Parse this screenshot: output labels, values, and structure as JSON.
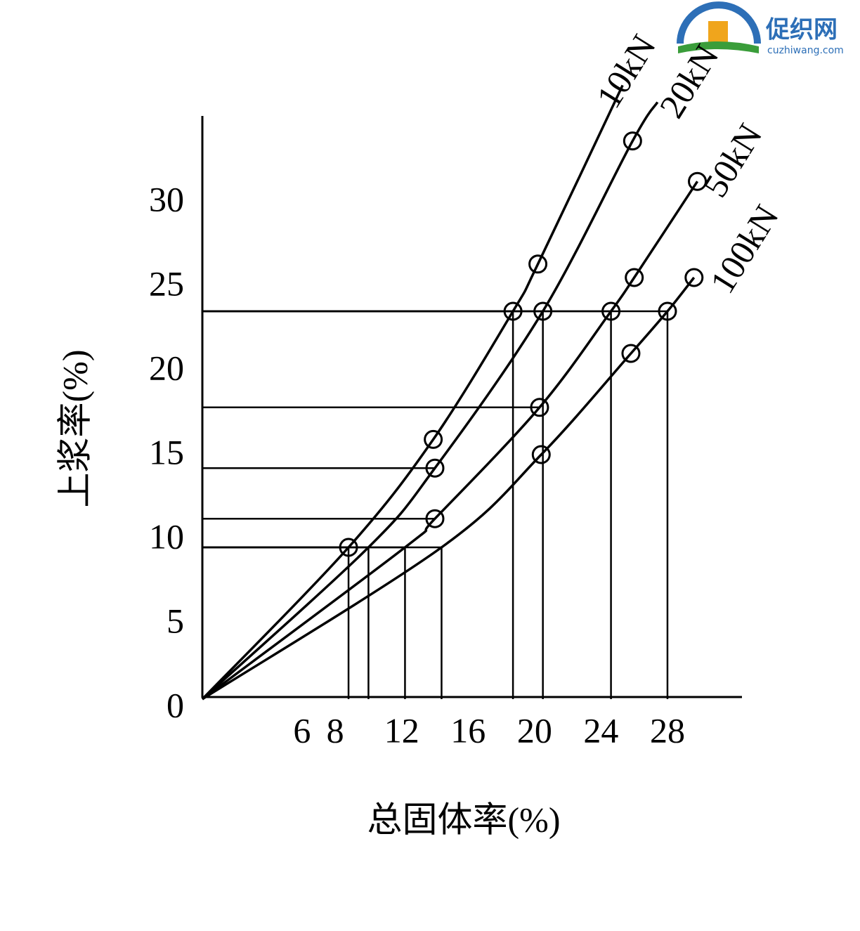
{
  "chart_data": {
    "type": "line",
    "x_label": "总固体率(%)",
    "y_label": "上浆率(%)",
    "xlim": [
      0,
      32.4
    ],
    "ylim": [
      0,
      34.5
    ],
    "xticks": [
      6,
      8,
      12,
      16,
      20,
      24,
      28
    ],
    "yticks": [
      0,
      5,
      10,
      15,
      20,
      25,
      30
    ],
    "grid": false,
    "series": [
      {
        "name": "10kN",
        "color": "#000000",
        "x": [
          0,
          8.8,
          13.9,
          18.7,
          20.2,
          25.3
        ],
        "values": [
          0,
          9.0,
          15.4,
          23.0,
          25.8,
          36.4
        ],
        "markers": [
          false,
          true,
          true,
          true,
          true,
          false
        ]
      },
      {
        "name": "20kN",
        "color": "#000000",
        "x": [
          0,
          10.0,
          14.0,
          20.5,
          25.9,
          27.4
        ],
        "values": [
          0,
          9.0,
          13.7,
          23.0,
          33.1,
          35.4
        ],
        "markers": [
          false,
          false,
          true,
          true,
          true,
          false
        ]
      },
      {
        "name": "50kN",
        "color": "#000000",
        "x": [
          0,
          12.2,
          14.0,
          20.3,
          24.6,
          26.0,
          29.8
        ],
        "values": [
          0,
          9.0,
          10.7,
          17.3,
          23.0,
          25.0,
          30.7
        ],
        "markers": [
          false,
          false,
          true,
          true,
          true,
          true,
          true
        ]
      },
      {
        "name": "100kN",
        "color": "#000000",
        "x": [
          0,
          14.4,
          20.4,
          25.8,
          28.0,
          29.6
        ],
        "values": [
          0,
          9.0,
          14.5,
          20.5,
          23.0,
          25.0
        ],
        "markers": [
          false,
          false,
          true,
          true,
          true,
          true
        ]
      }
    ]
  },
  "watermark": {
    "name": "促织网",
    "url": "cuzhiwang.com"
  }
}
